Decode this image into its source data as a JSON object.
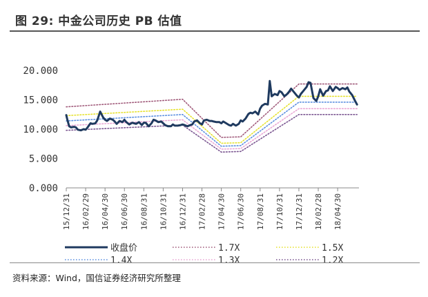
{
  "header": {
    "title": "图 29:  中金公司历史 PB 估值"
  },
  "footer": {
    "source": "资料来源：Wind，国信证券经济研究所整理"
  },
  "chart_data": {
    "type": "line",
    "title": "",
    "xlabel": "",
    "ylabel": "",
    "ylim": [
      0,
      20
    ],
    "yticks": [
      "0.000",
      "5.000",
      "10.000",
      "15.000",
      "20.000"
    ],
    "yticks_values": [
      0,
      5,
      10,
      15,
      20
    ],
    "x_tick_labels": [
      "15/12/31",
      "16/02/29",
      "16/04/30",
      "16/06/30",
      "16/08/31",
      "16/10/31",
      "16/12/31",
      "17/02/28",
      "17/04/30",
      "17/06/30",
      "17/08/31",
      "17/10/31",
      "17/12/31",
      "18/02/28",
      "18/04/30"
    ],
    "x_tick_months": [
      0,
      2,
      4,
      6,
      8,
      10,
      12,
      14,
      16,
      18,
      20,
      22,
      24,
      26,
      28
    ],
    "x_range_months": [
      0,
      30.2
    ],
    "grid": false,
    "legend_position": "bottom",
    "series": [
      {
        "name": "收盘价",
        "color": "#1f3a5f",
        "style": "solid",
        "width": 3,
        "x": [
          0,
          0.1,
          0.3,
          0.5,
          0.8,
          1.0,
          1.2,
          1.5,
          1.8,
          2.0,
          2.2,
          2.5,
          2.7,
          3.0,
          3.2,
          3.5,
          3.8,
          4.0,
          4.2,
          4.5,
          4.8,
          5.0,
          5.2,
          5.5,
          5.8,
          6.0,
          6.2,
          6.5,
          6.8,
          7.0,
          7.2,
          7.5,
          7.8,
          8.0,
          8.2,
          8.5,
          8.8,
          9.0,
          9.2,
          9.5,
          9.8,
          10.0,
          10.2,
          10.5,
          10.8,
          11.0,
          11.2,
          11.5,
          11.8,
          12.0,
          12.2,
          12.5,
          12.8,
          13.0,
          13.2,
          13.5,
          13.8,
          14.0,
          14.2,
          14.5,
          14.8,
          15.0,
          15.2,
          15.5,
          15.8,
          16.0,
          16.2,
          16.5,
          16.8,
          17.0,
          17.2,
          17.5,
          17.8,
          18.0,
          18.2,
          18.5,
          18.8,
          19.0,
          19.2,
          19.5,
          19.8,
          20.0,
          20.2,
          20.5,
          20.8,
          21.0,
          21.2,
          21.5,
          21.8,
          22.0,
          22.2,
          22.5,
          22.8,
          23.0,
          23.2,
          23.5,
          23.8,
          24.0,
          24.2,
          24.5,
          24.8,
          25.0,
          25.2,
          25.5,
          25.8,
          26.0,
          26.2,
          26.5,
          26.8,
          27.0,
          27.2,
          27.5,
          27.8,
          28.0,
          28.2,
          28.5,
          28.8,
          29.0,
          29.2,
          29.5,
          29.8,
          30.0
        ],
        "values": [
          12.4,
          11.7,
          10.5,
          10.3,
          10.4,
          10.3,
          9.9,
          9.8,
          10.0,
          9.9,
          10.3,
          11.0,
          10.9,
          11.0,
          11.5,
          13.0,
          12.0,
          11.6,
          11.4,
          11.8,
          11.6,
          11.3,
          10.9,
          11.4,
          11.2,
          11.6,
          11.2,
          10.8,
          11.1,
          11.0,
          10.9,
          11.2,
          10.7,
          11.1,
          11.1,
          10.5,
          11.0,
          11.6,
          11.5,
          11.2,
          11.3,
          11.0,
          10.7,
          10.5,
          10.5,
          10.8,
          10.6,
          10.6,
          10.7,
          10.8,
          10.7,
          10.5,
          10.7,
          10.8,
          11.3,
          11.5,
          11.0,
          10.8,
          11.5,
          11.6,
          11.4,
          11.4,
          11.3,
          11.2,
          11.2,
          11.0,
          11.3,
          11.0,
          10.7,
          10.6,
          10.9,
          10.6,
          10.9,
          11.5,
          11.3,
          11.8,
          12.6,
          12.8,
          12.7,
          13.0,
          12.5,
          13.5,
          14.0,
          14.3,
          14.2,
          18.2,
          15.6,
          16.0,
          15.8,
          16.5,
          16.3,
          15.6,
          16.0,
          16.4,
          16.9,
          16.3,
          15.7,
          15.4,
          16.0,
          16.6,
          17.2,
          18.0,
          17.9,
          15.3,
          14.8,
          15.6,
          16.8,
          15.7,
          16.5,
          16.6,
          17.3,
          16.5,
          17.2,
          17.0,
          16.7,
          17.0,
          16.8,
          17.1,
          16.4,
          15.8,
          14.8,
          14.2
        ]
      },
      {
        "name": "1.7X",
        "color": "#a05a7a",
        "style": "dotted",
        "width": 1.6,
        "x": [
          0,
          12,
          16,
          18,
          24,
          30
        ],
        "values": [
          13.8,
          15.1,
          8.6,
          8.7,
          17.7,
          17.7
        ]
      },
      {
        "name": "1.5X",
        "color": "#e6e22e",
        "style": "dotted",
        "width": 1.6,
        "x": [
          0,
          12,
          16,
          18,
          24,
          30
        ],
        "values": [
          12.3,
          13.4,
          7.6,
          7.7,
          15.6,
          15.6
        ]
      },
      {
        "name": "1.4X",
        "color": "#5b8fe0",
        "style": "dotted",
        "width": 1.6,
        "x": [
          0,
          12,
          16,
          18,
          24,
          30
        ],
        "values": [
          11.4,
          12.5,
          7.1,
          7.2,
          14.6,
          14.6
        ]
      },
      {
        "name": "1.3X",
        "color": "#e9a6d4",
        "style": "dotted",
        "width": 1.6,
        "x": [
          0,
          12,
          16,
          18,
          24,
          30
        ],
        "values": [
          10.6,
          11.6,
          6.6,
          6.7,
          13.5,
          13.5
        ]
      },
      {
        "name": "1.2X",
        "color": "#7a5590",
        "style": "dotted",
        "width": 1.6,
        "x": [
          0,
          12,
          16,
          18,
          24,
          30
        ],
        "values": [
          9.8,
          10.7,
          6.1,
          6.2,
          12.5,
          12.5
        ]
      }
    ]
  }
}
